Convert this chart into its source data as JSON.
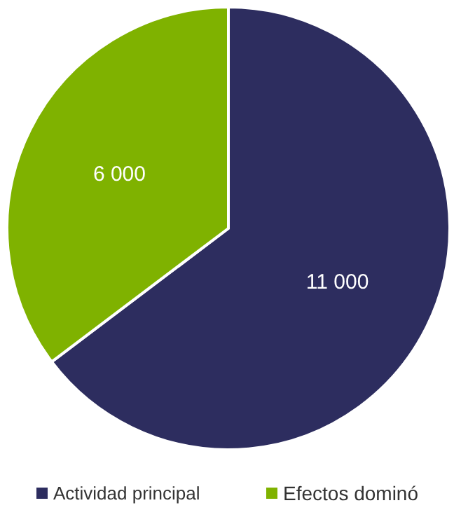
{
  "chart_data": {
    "type": "pie",
    "categories": [
      "Actividad principal",
      "Efectos dominó"
    ],
    "values": [
      11000,
      6000
    ],
    "colors": [
      "#2d2d5f",
      "#7fb200"
    ],
    "value_labels": [
      "11 000",
      "6 000"
    ],
    "legend": "bottom"
  }
}
